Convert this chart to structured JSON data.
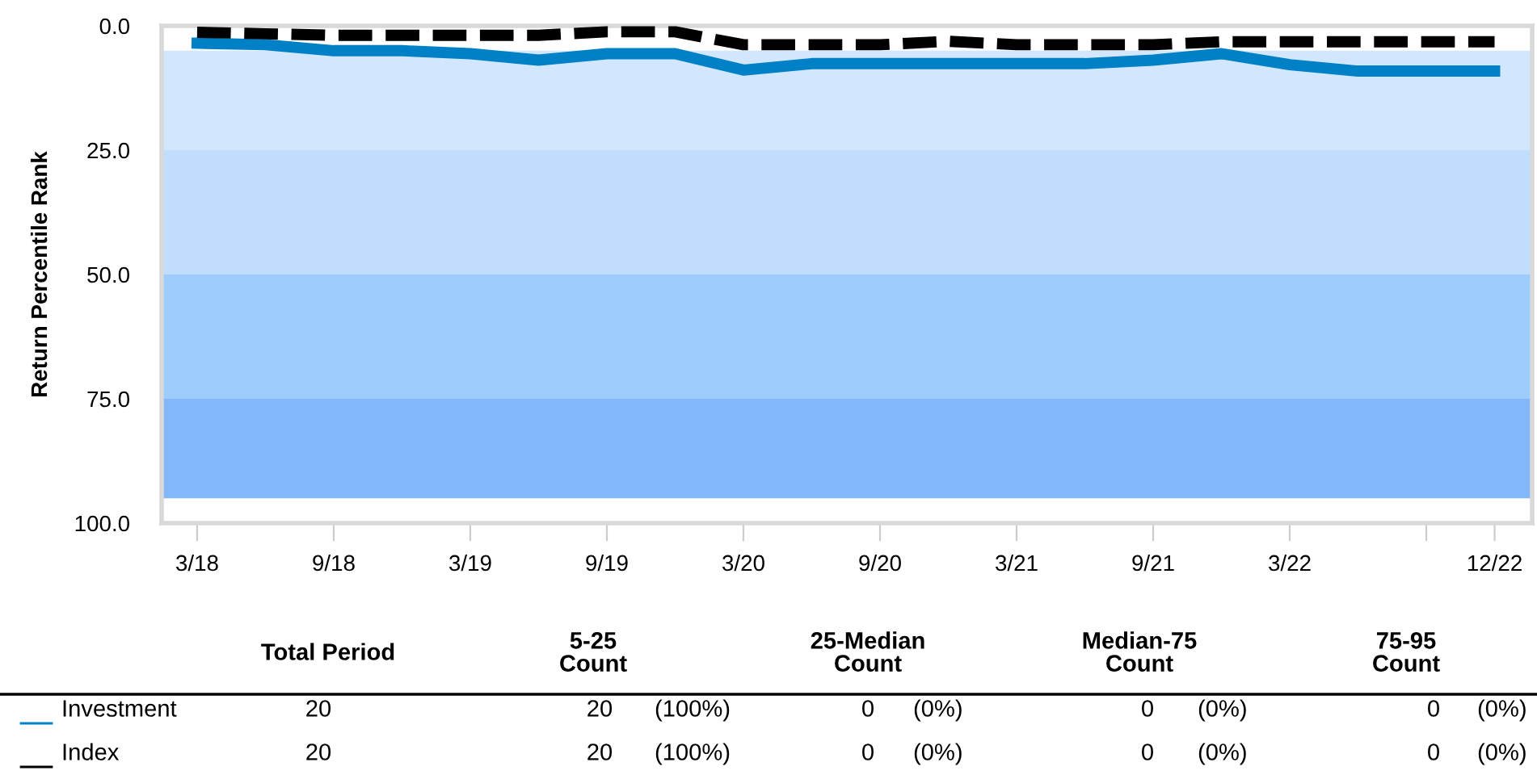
{
  "chart_data": {
    "type": "line",
    "ylabel": "Return Percentile Rank",
    "categories": [
      "3/18",
      null,
      "9/18",
      null,
      "3/19",
      null,
      "9/19",
      null,
      "3/20",
      null,
      "9/20",
      null,
      "3/21",
      null,
      "9/21",
      null,
      "3/22",
      null,
      null,
      "12/22"
    ],
    "series": [
      {
        "name": "Investment",
        "color": "#0080c6",
        "line_style": "solid",
        "values": [
          3.5,
          3.8,
          5.0,
          5.0,
          5.6,
          6.9,
          5.6,
          5.6,
          8.9,
          7.6,
          7.6,
          7.6,
          7.6,
          7.6,
          6.9,
          5.6,
          7.8,
          9.1,
          9.1,
          9.1
        ]
      },
      {
        "name": "Index",
        "color": "#000000",
        "line_style": "dashed",
        "values": [
          1.3,
          1.6,
          1.9,
          1.9,
          1.9,
          1.9,
          1.2,
          1.2,
          3.8,
          3.8,
          3.8,
          3.1,
          3.8,
          3.8,
          3.8,
          3.2,
          3.2,
          3.2,
          3.2,
          3.2
        ]
      }
    ],
    "ylim": [
      100,
      0
    ],
    "yticks": [
      {
        "value": 0,
        "label": "0.0"
      },
      {
        "value": 25,
        "label": "25.0"
      },
      {
        "value": 50,
        "label": "50.0"
      },
      {
        "value": 75,
        "label": "75.0"
      },
      {
        "value": 100,
        "label": "100.0"
      }
    ],
    "bands": [
      {
        "axis": "y",
        "from": 5,
        "to": 25,
        "color": "#d2e7fd"
      },
      {
        "axis": "y",
        "from": 25,
        "to": 50,
        "color": "#c0ddfc"
      },
      {
        "axis": "y",
        "from": 50,
        "to": 75,
        "color": "#9dcbfc"
      },
      {
        "axis": "y",
        "from": 75,
        "to": 95,
        "color": "#84b6fb"
      }
    ],
    "grid": false,
    "legend": "bottom",
    "annotations": [
      "Total Period",
      "5-25\nCount",
      "25-Median\nCount",
      "Median-75\nCount",
      "75-95\nCount",
      "20",
      "20",
      "(100%)",
      "0",
      "(0%)",
      "0",
      "(0%)",
      "0",
      "(0%)",
      "20",
      "20",
      "(100%)",
      "0",
      "(0%)",
      "0",
      "(0%)",
      "0",
      "(0%)"
    ]
  }
}
